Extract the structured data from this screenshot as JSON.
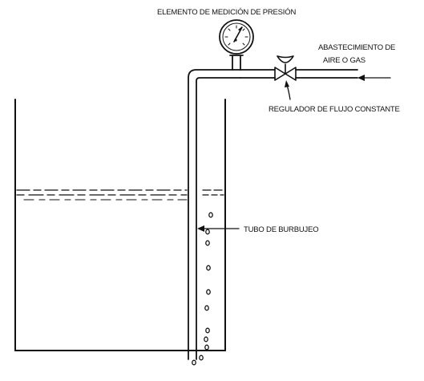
{
  "labels": {
    "pressure_gauge": "ELEMENTO DE MEDICIÓN DE PRESIÓN",
    "supply_line1": "ABASTECIMIENTO DE",
    "supply_line2": "AIRE O GAS",
    "flow_regulator": "REGULADOR DE FLUJO CONSTANTE",
    "bubble_tube": "TUBO DE BURBUJEO"
  },
  "colors": {
    "ink": "#111111",
    "background": "#ffffff"
  }
}
